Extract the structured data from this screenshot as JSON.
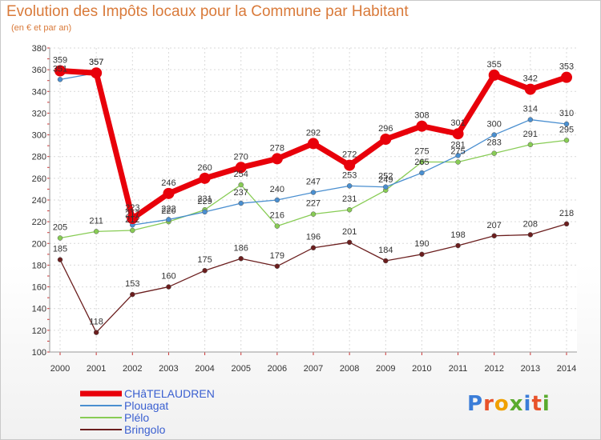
{
  "title": "Evolution des Impôts locaux pour la Commune par Habitant",
  "subtitle": "(en € et par an)",
  "logo": {
    "text": "Proxiti",
    "letters": [
      "P",
      "r",
      "o",
      "x",
      "i",
      "t",
      "i"
    ],
    "colors": [
      "#3b7dd8",
      "#e8522a",
      "#f0a000",
      "#5aab2e",
      "#3b7dd8",
      "#e8522a",
      "#5aab2e"
    ]
  },
  "chart_data": {
    "type": "line",
    "x": [
      "2000",
      "2001",
      "2002",
      "2003",
      "2004",
      "2005",
      "2006",
      "2007",
      "2008",
      "2009",
      "2010",
      "2011",
      "2012",
      "2013",
      "2014"
    ],
    "ylim": [
      100,
      380
    ],
    "yticks": [
      100,
      120,
      140,
      160,
      180,
      200,
      220,
      240,
      260,
      280,
      300,
      320,
      340,
      360,
      380
    ],
    "grid": true,
    "legend_position": "bottom-left",
    "series": [
      {
        "name": "CHâTELAUDREN",
        "color": "#e8000a",
        "values": [
          359,
          357,
          223,
          246,
          260,
          270,
          278,
          292,
          272,
          296,
          308,
          301,
          355,
          342,
          353
        ]
      },
      {
        "name": "Plouagat",
        "color": "#4a8fd0",
        "values": [
          351,
          357,
          217,
          222,
          229,
          237,
          240,
          247,
          253,
          252,
          265,
          281,
          300,
          314,
          310
        ]
      },
      {
        "name": "Plélo",
        "color": "#88cc55",
        "values": [
          205,
          211,
          212,
          220,
          231,
          254,
          216,
          227,
          231,
          249,
          275,
          275,
          283,
          291,
          295
        ]
      },
      {
        "name": "Bringolo",
        "color": "#6b1e1e",
        "values": [
          185,
          118,
          153,
          160,
          175,
          186,
          179,
          196,
          201,
          184,
          190,
          198,
          207,
          208,
          218
        ]
      }
    ]
  }
}
